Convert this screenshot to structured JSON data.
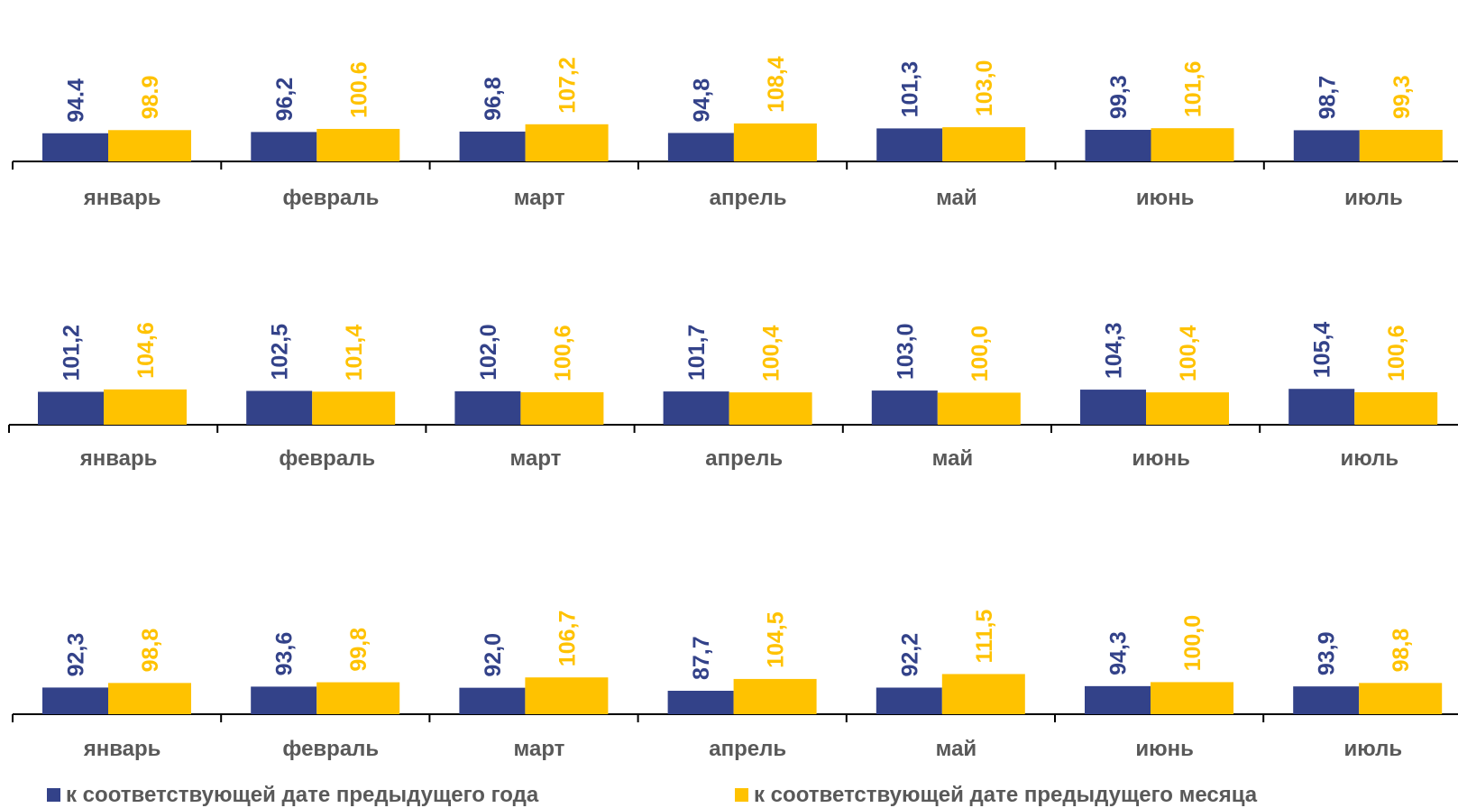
{
  "colors": {
    "series_a": "#334289",
    "series_b": "#FFC200",
    "axis": "#000000",
    "category_text": "#595959"
  },
  "chart_data": [
    {
      "type": "bar",
      "categories": [
        "январь",
        "февраль",
        "март",
        "апрель",
        "май",
        "июнь",
        "июль"
      ],
      "series": [
        {
          "name": "к соответствующей дате предыдущего года",
          "values": [
            94.4,
            96.2,
            96.8,
            94.8,
            101.3,
            99.3,
            98.7
          ],
          "labels": [
            "94.4",
            "96,2",
            "96,8",
            "94,8",
            "101,3",
            "99,3",
            "98,7"
          ]
        },
        {
          "name": "к соответствующей дате предыдущего месяца",
          "values": [
            98.9,
            100.6,
            107.2,
            108.4,
            103.0,
            101.6,
            99.3
          ],
          "labels": [
            "98.9",
            "100.6",
            "107,2",
            "108,4",
            "103,0",
            "101,6",
            "99,3"
          ]
        }
      ]
    },
    {
      "type": "bar",
      "categories": [
        "январь",
        "февраль",
        "март",
        "апрель",
        "май",
        "июнь",
        "июль"
      ],
      "series": [
        {
          "name": "к соответствующей дате предыдущего года",
          "values": [
            101.2,
            102.5,
            102.0,
            101.7,
            103.0,
            104.3,
            105.4
          ],
          "labels": [
            "101,2",
            "102,5",
            "102,0",
            "101,7",
            "103,0",
            "104,3",
            "105,4"
          ]
        },
        {
          "name": "к соответствующей дате предыдущего месяца",
          "values": [
            104.6,
            101.4,
            100.6,
            100.4,
            100.0,
            100.4,
            100.6
          ],
          "labels": [
            "104,6",
            "101,4",
            "100,6",
            "100,4",
            "100,0",
            "100,4",
            "100,6"
          ]
        }
      ]
    },
    {
      "type": "bar",
      "categories": [
        "январь",
        "февраль",
        "март",
        "апрель",
        "май",
        "июнь",
        "июль"
      ],
      "series": [
        {
          "name": "к соответствующей дате предыдущего года",
          "values": [
            92.3,
            93.6,
            92.0,
            87.7,
            92.2,
            94.3,
            93.9
          ],
          "labels": [
            "92,3",
            "93,6",
            "92,0",
            "87,7",
            "92,2",
            "94,3",
            "93,9"
          ]
        },
        {
          "name": "к соответствующей дате предыдущего месяца",
          "values": [
            98.8,
            99.8,
            106.7,
            104.5,
            111.5,
            100.0,
            98.8
          ],
          "labels": [
            "98,8",
            "99,8",
            "106,7",
            "104,5",
            "111,5",
            "100,0",
            "98,8"
          ]
        }
      ]
    }
  ],
  "legend": {
    "series_a_label": "к соответствующей дате предыдущего года",
    "series_b_label": "к соответствующей дате предыдущего месяца"
  }
}
